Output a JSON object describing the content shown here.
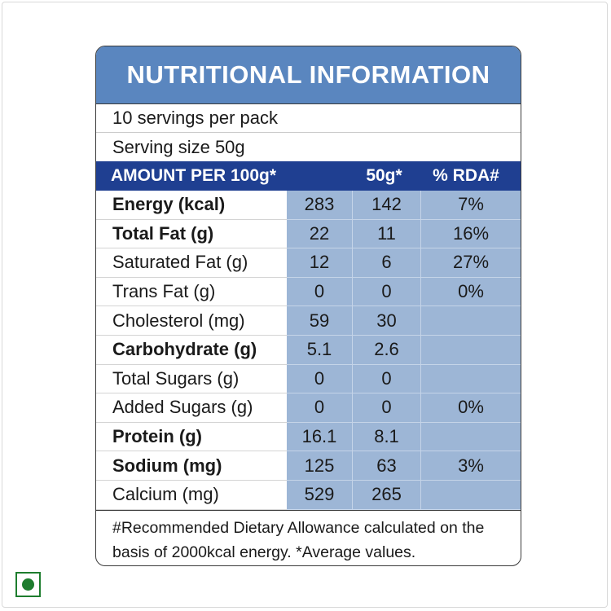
{
  "table": {
    "title": "NUTRITIONAL INFORMATION",
    "servings": "10 servings per pack",
    "serving_size": "Serving size 50g",
    "header": {
      "amount": "AMOUNT PER 100g*",
      "per_serving": "50g*",
      "rda": "% RDA#"
    },
    "rows": [
      {
        "label": "Energy (kcal)",
        "bold": true,
        "per100": "283",
        "per50": "142",
        "rda": "7%"
      },
      {
        "label": "Total Fat (g)",
        "bold": true,
        "per100": "22",
        "per50": "11",
        "rda": "16%"
      },
      {
        "label": "Saturated Fat (g)",
        "bold": false,
        "per100": "12",
        "per50": "6",
        "rda": "27%"
      },
      {
        "label": "Trans Fat (g)",
        "bold": false,
        "per100": "0",
        "per50": "0",
        "rda": "0%"
      },
      {
        "label": "Cholesterol (mg)",
        "bold": false,
        "per100": "59",
        "per50": "30",
        "rda": ""
      },
      {
        "label": "Carbohydrate (g)",
        "bold": true,
        "per100": "5.1",
        "per50": "2.6",
        "rda": ""
      },
      {
        "label": "Total Sugars (g)",
        "bold": false,
        "per100": "0",
        "per50": "0",
        "rda": ""
      },
      {
        "label": "Added Sugars (g)",
        "bold": false,
        "per100": "0",
        "per50": "0",
        "rda": "0%"
      },
      {
        "label": "Protein (g)",
        "bold": true,
        "per100": "16.1",
        "per50": "8.1",
        "rda": ""
      },
      {
        "label": "Sodium (mg)",
        "bold": true,
        "per100": "125",
        "per50": "63",
        "rda": "3%"
      },
      {
        "label": "Calcium (mg)",
        "bold": false,
        "per100": "529",
        "per50": "265",
        "rda": ""
      }
    ],
    "footnote_line1": "#Recommended Dietary Allowance calculated on the",
    "footnote_line2": "basis of 2000kcal energy.  *Average values."
  },
  "veg_icon": "veg-mark-icon",
  "colors": {
    "title_bg": "#5a86bf",
    "header_bg": "#1f3f91",
    "value_cells": "#9db6d6",
    "veg_green": "#1e7d2e"
  }
}
